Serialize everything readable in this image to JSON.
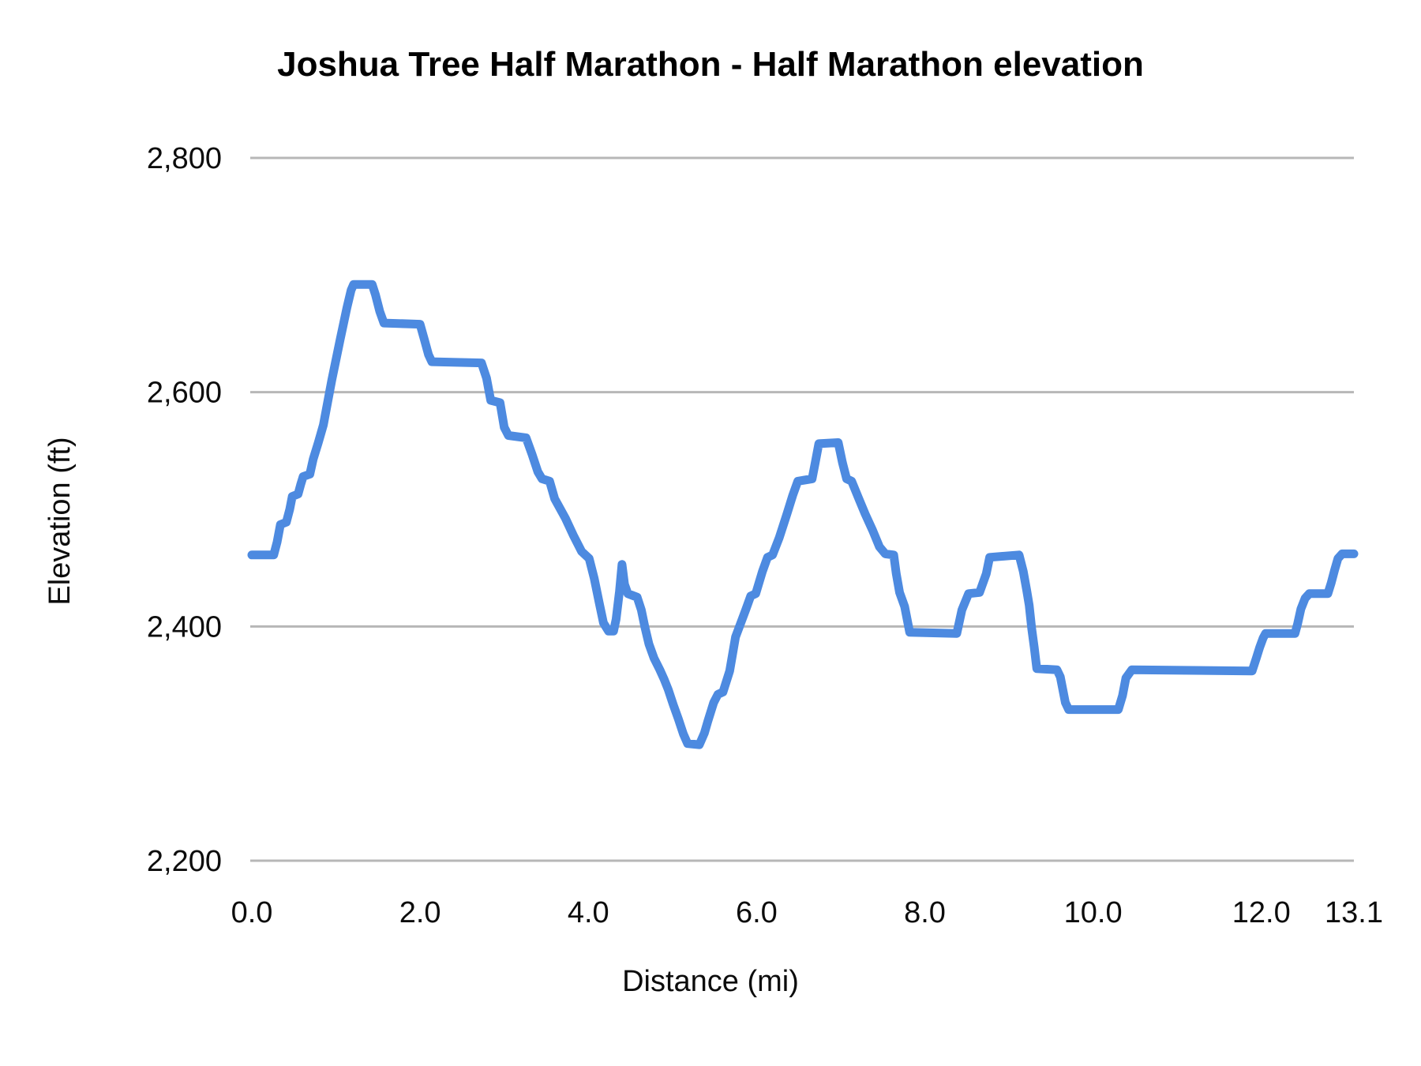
{
  "chart_data": {
    "type": "line",
    "title": "Joshua Tree Half Marathon - Half Marathon elevation",
    "xlabel": "Distance (mi)",
    "ylabel": "Elevation (ft)",
    "xlim": [
      0,
      13.1
    ],
    "ylim": [
      2200,
      2800
    ],
    "grid": "horizontal",
    "legend": "none",
    "colors": {
      "line": "#4d8ae0",
      "gridline": "#b7b7b7",
      "text": "#0c0c0c",
      "background": "#ffffff"
    },
    "x_ticks": [
      {
        "value": 0.0,
        "label": "0.0"
      },
      {
        "value": 2.0,
        "label": "2.0"
      },
      {
        "value": 4.0,
        "label": "4.0"
      },
      {
        "value": 6.0,
        "label": "6.0"
      },
      {
        "value": 8.0,
        "label": "8.0"
      },
      {
        "value": 10.0,
        "label": "10.0"
      },
      {
        "value": 12.0,
        "label": "12.0"
      },
      {
        "value": 13.1,
        "label": "13.1"
      }
    ],
    "y_ticks": [
      {
        "value": 2200,
        "label": "2,200"
      },
      {
        "value": 2400,
        "label": "2,400"
      },
      {
        "value": 2600,
        "label": "2,600"
      },
      {
        "value": 2800,
        "label": "2,800"
      }
    ],
    "series": [
      {
        "name": "Half Marathon elevation",
        "points": [
          [
            0.0,
            2461
          ],
          [
            0.26,
            2461
          ],
          [
            0.3,
            2472
          ],
          [
            0.34,
            2487
          ],
          [
            0.41,
            2489
          ],
          [
            0.45,
            2500
          ],
          [
            0.48,
            2511
          ],
          [
            0.55,
            2513
          ],
          [
            0.58,
            2521
          ],
          [
            0.61,
            2528
          ],
          [
            0.69,
            2530
          ],
          [
            0.73,
            2543
          ],
          [
            0.79,
            2557
          ],
          [
            0.85,
            2572
          ],
          [
            0.95,
            2610
          ],
          [
            1.05,
            2645
          ],
          [
            1.13,
            2672
          ],
          [
            1.18,
            2687
          ],
          [
            1.21,
            2692
          ],
          [
            1.43,
            2692
          ],
          [
            1.47,
            2683
          ],
          [
            1.52,
            2669
          ],
          [
            1.57,
            2659
          ],
          [
            2.0,
            2658
          ],
          [
            2.05,
            2645
          ],
          [
            2.1,
            2632
          ],
          [
            2.14,
            2626
          ],
          [
            2.73,
            2625
          ],
          [
            2.79,
            2612
          ],
          [
            2.84,
            2593
          ],
          [
            2.95,
            2591
          ],
          [
            3.0,
            2570
          ],
          [
            3.05,
            2563
          ],
          [
            3.26,
            2561
          ],
          [
            3.33,
            2547
          ],
          [
            3.4,
            2532
          ],
          [
            3.45,
            2526
          ],
          [
            3.54,
            2524
          ],
          [
            3.6,
            2509
          ],
          [
            3.73,
            2492
          ],
          [
            3.82,
            2478
          ],
          [
            3.92,
            2464
          ],
          [
            4.01,
            2458
          ],
          [
            4.07,
            2441
          ],
          [
            4.13,
            2420
          ],
          [
            4.18,
            2403
          ],
          [
            4.24,
            2396
          ],
          [
            4.3,
            2396
          ],
          [
            4.33,
            2406
          ],
          [
            4.37,
            2430
          ],
          [
            4.4,
            2453
          ],
          [
            4.43,
            2436
          ],
          [
            4.47,
            2428
          ],
          [
            4.58,
            2425
          ],
          [
            4.63,
            2414
          ],
          [
            4.67,
            2400
          ],
          [
            4.72,
            2385
          ],
          [
            4.78,
            2373
          ],
          [
            4.85,
            2363
          ],
          [
            4.9,
            2355
          ],
          [
            4.95,
            2346
          ],
          [
            5.01,
            2333
          ],
          [
            5.07,
            2321
          ],
          [
            5.13,
            2308
          ],
          [
            5.18,
            2300
          ],
          [
            5.32,
            2299
          ],
          [
            5.38,
            2309
          ],
          [
            5.42,
            2319
          ],
          [
            5.49,
            2335
          ],
          [
            5.54,
            2342
          ],
          [
            5.6,
            2344
          ],
          [
            5.68,
            2362
          ],
          [
            5.75,
            2391
          ],
          [
            5.87,
            2414
          ],
          [
            5.93,
            2426
          ],
          [
            5.99,
            2428
          ],
          [
            6.07,
            2447
          ],
          [
            6.13,
            2459
          ],
          [
            6.19,
            2461
          ],
          [
            6.27,
            2476
          ],
          [
            6.36,
            2496
          ],
          [
            6.43,
            2512
          ],
          [
            6.49,
            2524
          ],
          [
            6.66,
            2526
          ],
          [
            6.7,
            2541
          ],
          [
            6.74,
            2556
          ],
          [
            6.97,
            2557
          ],
          [
            7.02,
            2540
          ],
          [
            7.07,
            2526
          ],
          [
            7.13,
            2524
          ],
          [
            7.21,
            2510
          ],
          [
            7.29,
            2496
          ],
          [
            7.38,
            2482
          ],
          [
            7.46,
            2468
          ],
          [
            7.53,
            2462
          ],
          [
            7.63,
            2461
          ],
          [
            7.66,
            2445
          ],
          [
            7.7,
            2429
          ],
          [
            7.76,
            2417
          ],
          [
            7.82,
            2395
          ],
          [
            8.38,
            2394
          ],
          [
            8.44,
            2414
          ],
          [
            8.52,
            2428
          ],
          [
            8.65,
            2429
          ],
          [
            8.73,
            2445
          ],
          [
            8.77,
            2459
          ],
          [
            9.12,
            2461
          ],
          [
            9.17,
            2447
          ],
          [
            9.21,
            2431
          ],
          [
            9.24,
            2418
          ],
          [
            9.27,
            2398
          ],
          [
            9.3,
            2382
          ],
          [
            9.33,
            2364
          ],
          [
            9.57,
            2363
          ],
          [
            9.61,
            2357
          ],
          [
            9.64,
            2346
          ],
          [
            9.67,
            2335
          ],
          [
            9.71,
            2329
          ],
          [
            10.3,
            2329
          ],
          [
            10.35,
            2341
          ],
          [
            10.39,
            2356
          ],
          [
            10.46,
            2363
          ],
          [
            11.89,
            2362
          ],
          [
            11.94,
            2373
          ],
          [
            11.98,
            2382
          ],
          [
            12.02,
            2390
          ],
          [
            12.05,
            2394
          ],
          [
            12.4,
            2394
          ],
          [
            12.43,
            2402
          ],
          [
            12.47,
            2415
          ],
          [
            12.52,
            2424
          ],
          [
            12.57,
            2428
          ],
          [
            12.79,
            2428
          ],
          [
            12.83,
            2437
          ],
          [
            12.87,
            2448
          ],
          [
            12.91,
            2458
          ],
          [
            12.96,
            2462
          ],
          [
            13.1,
            2462
          ]
        ]
      }
    ]
  }
}
